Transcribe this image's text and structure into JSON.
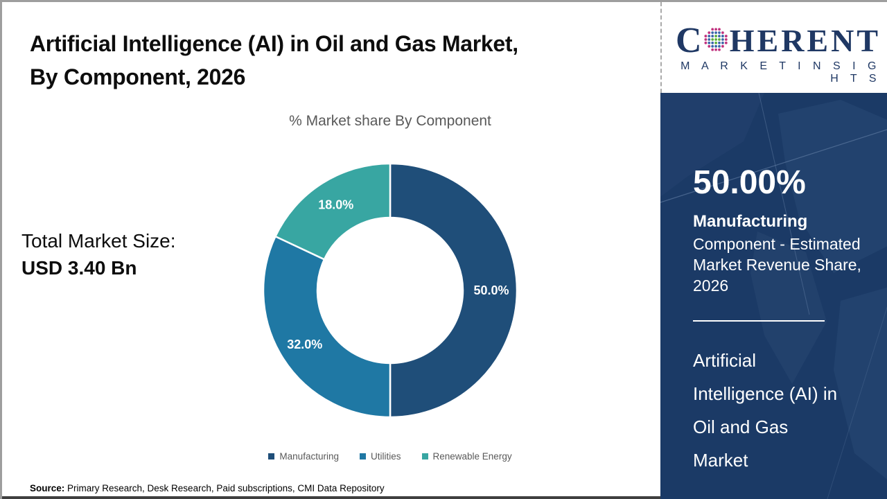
{
  "page": {
    "title": "Artificial Intelligence (AI) in Oil and Gas Market,\nBy Component, 2026",
    "source_label": "Source:",
    "source_text": " Primary Research, Desk Research, Paid subscriptions, CMI Data Repository"
  },
  "brand": {
    "name_prefix": "C",
    "name_suffix": "HERENT",
    "tagline": "M A R K E T   I N S I G H T S",
    "globe_icon": "dotted-globe",
    "navy": "#1F3864",
    "dot_colors": {
      "inner": "#5BAE3C",
      "mid": "#3A66A8",
      "outer": "#C0327E"
    }
  },
  "left_stats": {
    "label": "Total Market Size:",
    "value": "USD 3.40 Bn"
  },
  "chart_data": {
    "type": "pie",
    "donut": true,
    "title": "% Market share By Component",
    "categories": [
      "Manufacturing",
      "Utilities",
      "Renewable Energy"
    ],
    "values": [
      50.0,
      32.0,
      18.0
    ],
    "labels": [
      "50.0%",
      "32.0%",
      "18.0%"
    ],
    "colors": [
      "#1F4E79",
      "#1F78A4",
      "#38A6A2"
    ],
    "legend_position": "bottom",
    "start_angle_deg": 0,
    "direction": "clockwise"
  },
  "side_panel": {
    "background": "#1B3A66",
    "stat_value": "50.00%",
    "stat_segment": "Manufacturing",
    "stat_desc": "Component - Estimated\nMarket Revenue Share,\n2026",
    "market_name": "Artificial\nIntelligence (AI) in\nOil and Gas\nMarket"
  }
}
